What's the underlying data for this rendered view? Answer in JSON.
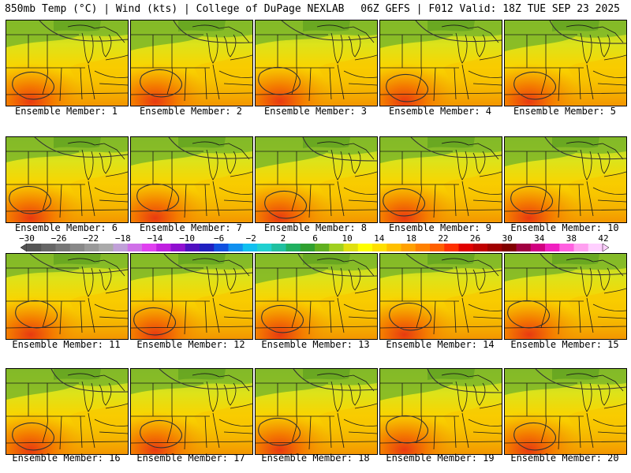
{
  "header": {
    "left": "850mb Temp (°C) | Wind (kts) | College of DuPage NEXLAB",
    "right": "06Z GEFS | F012 Valid: 18Z TUE SEP 23 2025"
  },
  "panels": [
    {
      "label": "Ensemble Member: 1"
    },
    {
      "label": "Ensemble Member: 2"
    },
    {
      "label": "Ensemble Member: 3"
    },
    {
      "label": "Ensemble Member: 4"
    },
    {
      "label": "Ensemble Member: 5"
    },
    {
      "label": "Ensemble Member: 6"
    },
    {
      "label": "Ensemble Member: 7"
    },
    {
      "label": "Ensemble Member: 8"
    },
    {
      "label": "Ensemble Member: 9"
    },
    {
      "label": "Ensemble Member: 10"
    },
    {
      "label": "Ensemble Member: 11"
    },
    {
      "label": "Ensemble Member: 12"
    },
    {
      "label": "Ensemble Member: 13"
    },
    {
      "label": "Ensemble Member: 14"
    },
    {
      "label": "Ensemble Member: 15"
    },
    {
      "label": "Ensemble Member: 16"
    },
    {
      "label": "Ensemble Member: 17"
    },
    {
      "label": "Ensemble Member: 18"
    },
    {
      "label": "Ensemble Member: 19"
    },
    {
      "label": "Ensemble Member: 20"
    }
  ],
  "colorbar": {
    "labels": [
      "−30",
      "−26",
      "−22",
      "−18",
      "−14",
      "−10",
      "−6",
      "−2",
      "2",
      "6",
      "10",
      "14",
      "18",
      "22",
      "26",
      "30",
      "34",
      "38",
      "42"
    ],
    "colors": [
      "#555555",
      "#666666",
      "#777777",
      "#888888",
      "#999999",
      "#aaaaaa",
      "#c0a0d8",
      "#d070e8",
      "#e040f0",
      "#c020e0",
      "#9010d0",
      "#5010c0",
      "#2020c0",
      "#1050e0",
      "#1090f0",
      "#10c0f0",
      "#20d0d0",
      "#20c0a0",
      "#20b060",
      "#30a030",
      "#60b020",
      "#a0d020",
      "#e0e010",
      "#ffff00",
      "#ffe000",
      "#ffc000",
      "#ffa000",
      "#ff8000",
      "#ff6000",
      "#ff3000",
      "#e00000",
      "#c00000",
      "#a00000",
      "#800000",
      "#a00040",
      "#d00080",
      "#f020c0",
      "#ff60e0",
      "#ffa0f0",
      "#ffd0ff"
    ]
  }
}
